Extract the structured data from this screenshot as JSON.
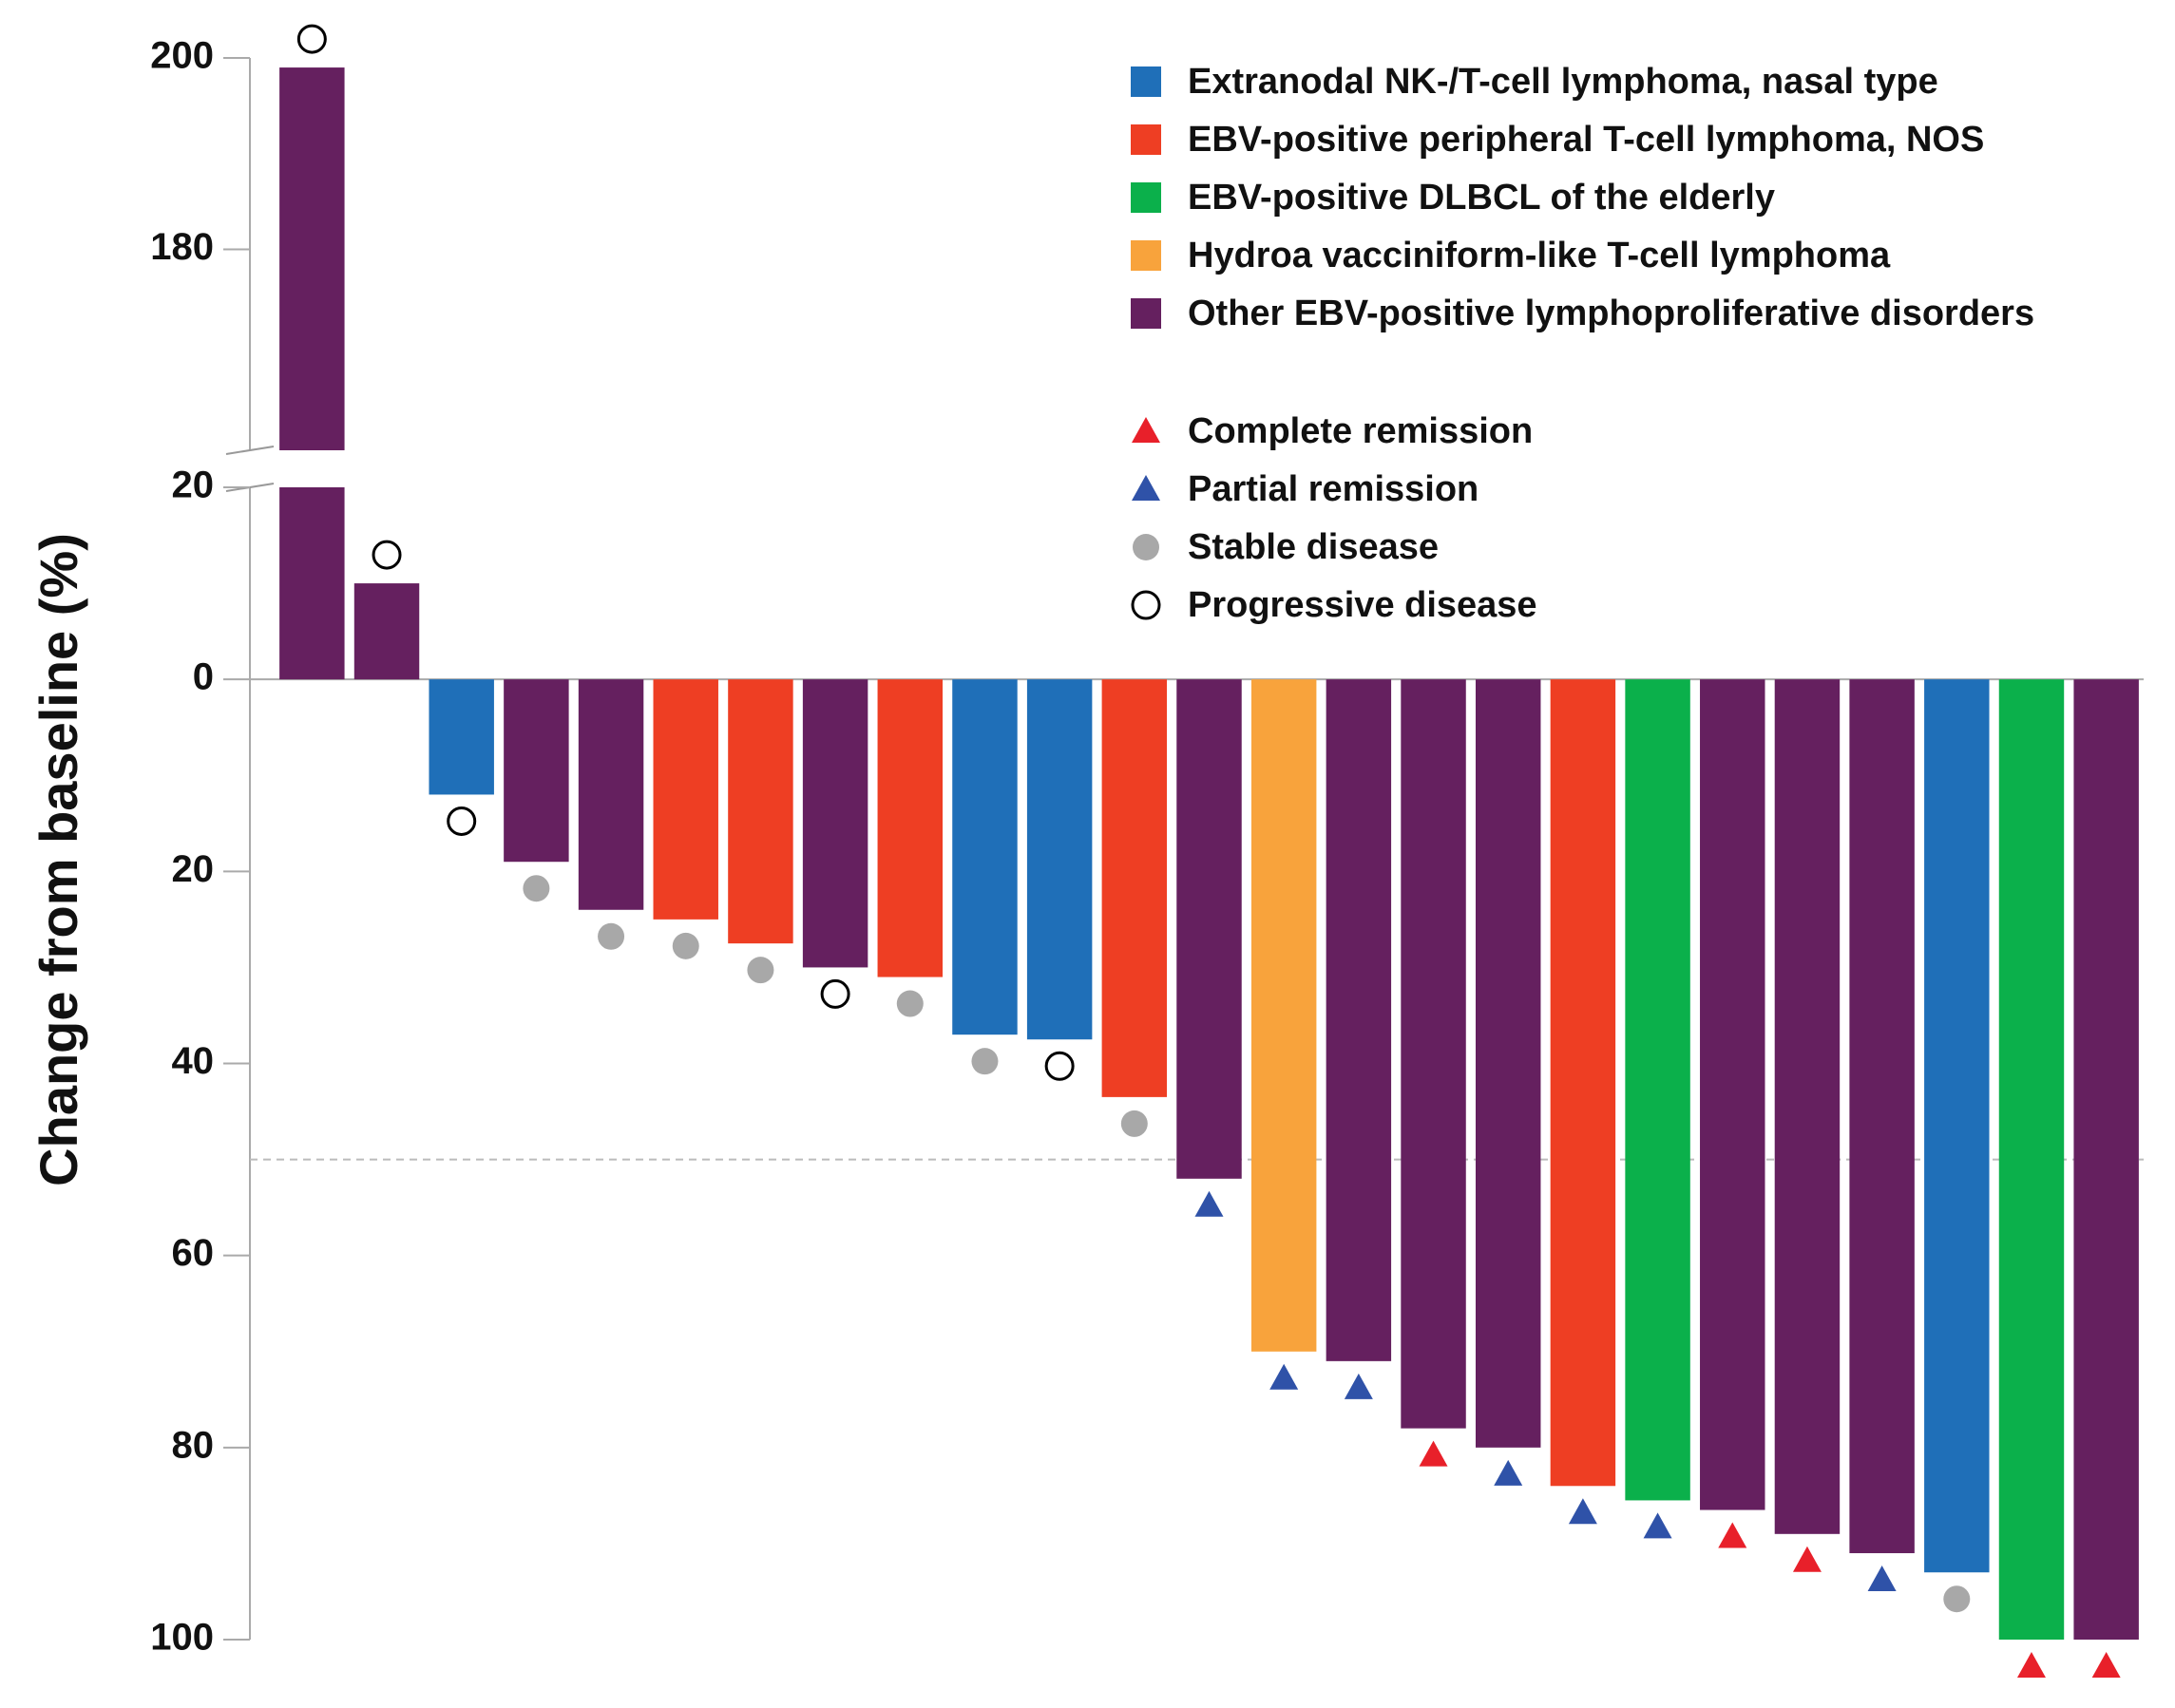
{
  "chart_data": {
    "type": "waterfall",
    "y_label": "Change from baseline (%)",
    "categories": [
      null,
      null,
      null,
      null,
      null,
      null,
      null,
      null,
      null,
      null,
      null,
      null,
      null,
      null,
      null,
      null,
      null,
      null,
      null,
      null,
      null,
      null,
      null,
      null,
      null
    ],
    "series": [
      {
        "name": "Extranodal NK-/T-cell lymphoma, nasal type",
        "color": "#1f6fb8",
        "values": [
          null,
          null,
          -12,
          null,
          null,
          null,
          null,
          null,
          null,
          -37,
          -37.5,
          null,
          null,
          null,
          null,
          null,
          null,
          null,
          null,
          null,
          null,
          null,
          -93,
          null,
          null
        ]
      },
      {
        "name": "EBV-positive peripheral T-cell lymphoma, NOS",
        "color": "#ee3e23",
        "values": [
          null,
          null,
          null,
          null,
          null,
          -25,
          -27.5,
          null,
          -31,
          null,
          null,
          -43.5,
          null,
          null,
          null,
          null,
          null,
          -84,
          null,
          null,
          null,
          null,
          null,
          null,
          null
        ]
      },
      {
        "name": "EBV-positive DLBCL of the elderly",
        "color": "#0bb04b",
        "values": [
          null,
          null,
          null,
          null,
          null,
          null,
          null,
          null,
          null,
          null,
          null,
          null,
          null,
          null,
          null,
          null,
          null,
          null,
          -85.5,
          null,
          null,
          null,
          null,
          -100,
          null
        ]
      },
      {
        "name": "Hydroa vacciniform-like T-cell lymphoma",
        "color": "#f8a33c",
        "values": [
          null,
          null,
          null,
          null,
          null,
          null,
          null,
          null,
          null,
          null,
          null,
          null,
          null,
          -70,
          null,
          null,
          null,
          null,
          null,
          null,
          null,
          null,
          null,
          null,
          null
        ]
      },
      {
        "name": "Other EBV-positive lymphoproliferative disorders",
        "color": "#65205f",
        "values": [
          199,
          10,
          null,
          -19,
          -24,
          null,
          null,
          -30,
          null,
          null,
          null,
          null,
          -52,
          null,
          -71,
          -78,
          -80,
          null,
          null,
          -86.5,
          -89,
          -91,
          null,
          null,
          -100
        ]
      }
    ],
    "markers": [
      {
        "name": "Complete remission",
        "color": "#e8202a",
        "shape": "triangle",
        "filled": true
      },
      {
        "name": "Partial remission",
        "color": "#2f52a8",
        "shape": "triangle",
        "filled": true
      },
      {
        "name": "Stable disease",
        "color": "#a8a8a8",
        "shape": "circle",
        "filled": true
      },
      {
        "name": "Progressive disease",
        "color": "#000000",
        "shape": "circle",
        "filled": false
      }
    ],
    "bar_markers": [
      3,
      3,
      3,
      2,
      2,
      2,
      2,
      3,
      2,
      2,
      3,
      2,
      1,
      1,
      1,
      0,
      1,
      1,
      1,
      0,
      0,
      1,
      2,
      0,
      0
    ],
    "ylim": [
      -100,
      20
    ],
    "yticks": [
      20,
      0,
      {
        "value": -20,
        "label": "20"
      },
      {
        "value": -40,
        "label": "40"
      },
      {
        "value": -60,
        "label": "60"
      },
      {
        "value": -80,
        "label": "80"
      },
      {
        "value": -100,
        "label": "100"
      }
    ],
    "upper_ylim": [
      159,
      200
    ],
    "upper_yticks": [
      180,
      200
    ],
    "reference_line": -50,
    "legend": "top-right"
  }
}
